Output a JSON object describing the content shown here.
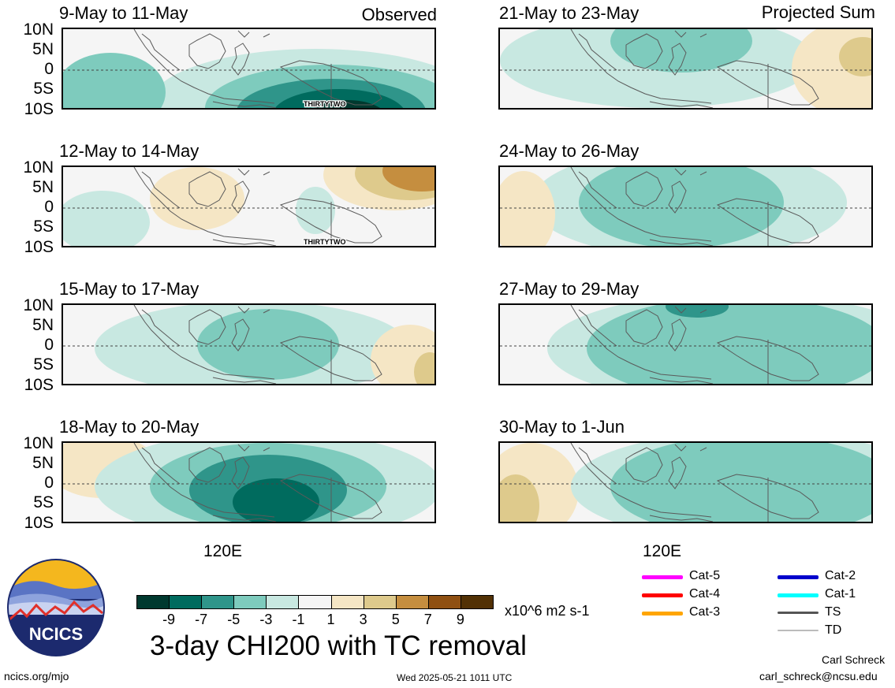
{
  "left_corner_label": "Observed",
  "right_corner_label": "Projected Sum",
  "lat_labels": [
    "10N",
    "5N",
    "0",
    "5S",
    "10S"
  ],
  "panels_left": [
    {
      "title": "9-May to 11-May",
      "tc": "THIRTYTWO"
    },
    {
      "title": "12-May to 14-May",
      "tc": "THIRTYTWO"
    },
    {
      "title": "15-May to 17-May",
      "tc": ""
    },
    {
      "title": "18-May to 20-May",
      "tc": ""
    }
  ],
  "panels_right": [
    {
      "title": "21-May to 23-May"
    },
    {
      "title": "24-May to 26-May"
    },
    {
      "title": "27-May to 29-May"
    },
    {
      "title": "30-May to 1-Jun"
    }
  ],
  "x_axis_label": "120E",
  "colorbar": {
    "colors": [
      "#00392f",
      "#006b5e",
      "#2f958a",
      "#7ecbbd",
      "#c8e8e1",
      "#f5f5f5",
      "#f5e6c5",
      "#deca8c",
      "#c58e3f",
      "#8f5012",
      "#523105"
    ],
    "ticks": [
      "-9",
      "-7",
      "-5",
      "-3",
      "-1",
      "1",
      "3",
      "5",
      "7",
      "9"
    ],
    "units": "x10^6 m2 s-1"
  },
  "main_title": "3-day CHI200 with TC removal",
  "legend": [
    {
      "label": "Cat-5",
      "color": "#ff00ff"
    },
    {
      "label": "Cat-4",
      "color": "#ff0000"
    },
    {
      "label": "Cat-3",
      "color": "#ffa500"
    },
    {
      "label": "Cat-2",
      "color": "#0000cc"
    },
    {
      "label": "Cat-1",
      "color": "#00ffff"
    },
    {
      "label": "TS",
      "color": "#555555"
    },
    {
      "label": "TD",
      "color": "#bbbbbb"
    }
  ],
  "logo_text": "NCICS",
  "footer_left": "ncics.org/mjo",
  "footer_center": "Wed 2025-05-21 1011 UTC",
  "author": "Carl Schreck",
  "email": "carl_schreck@ncsu.edu"
}
